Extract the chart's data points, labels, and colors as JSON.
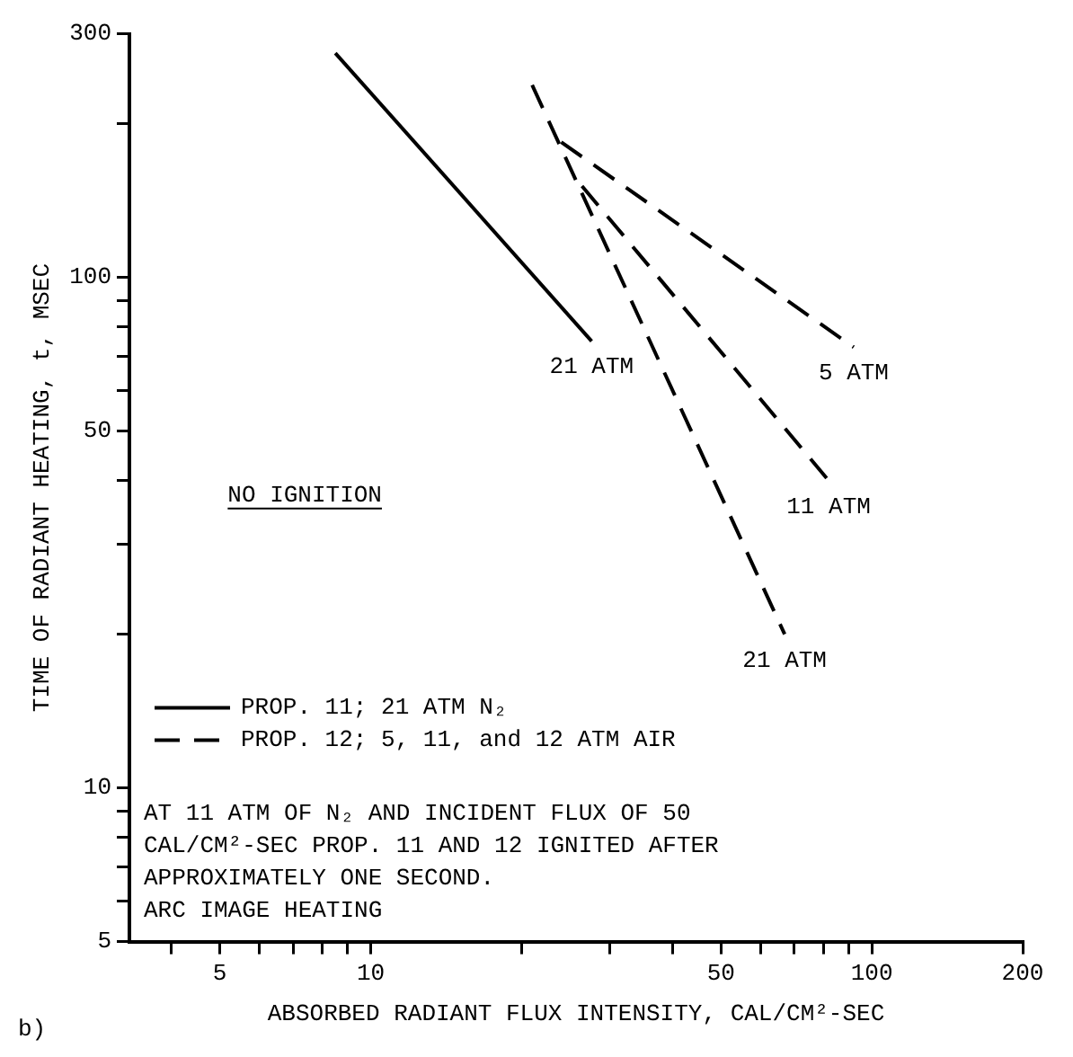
{
  "chart_data": {
    "type": "line",
    "xlabel": "ABSORBED RADIANT FLUX INTENSITY, CAL/CM²-SEC",
    "ylabel": "TIME OF RADIANT HEATING, t, MSEC",
    "log": "xy",
    "marker": "none",
    "grid": false,
    "legend": "bottom left",
    "xlim": [
      3.3,
      200
    ],
    "ylim": [
      5,
      300
    ],
    "xticks": [
      {
        "value": 4,
        "label": null
      },
      5,
      {
        "value": 6,
        "label": null
      },
      {
        "value": 7,
        "label": null
      },
      {
        "value": 8,
        "label": null
      },
      {
        "value": 9,
        "label": null
      },
      10,
      {
        "value": 20,
        "label": null
      },
      {
        "value": 30,
        "label": null
      },
      {
        "value": 40,
        "label": null
      },
      50,
      {
        "value": 60,
        "label": null
      },
      {
        "value": 70,
        "label": null
      },
      {
        "value": 80,
        "label": null
      },
      {
        "value": 90,
        "label": null
      },
      100,
      200
    ],
    "yticks": [
      5,
      {
        "value": 6,
        "label": null
      },
      {
        "value": 7,
        "label": null
      },
      {
        "value": 8,
        "label": null
      },
      {
        "value": 9,
        "label": null
      },
      10,
      {
        "value": 20,
        "label": null
      },
      {
        "value": 30,
        "label": null
      },
      {
        "value": 40,
        "label": null
      },
      50,
      {
        "value": 60,
        "label": null
      },
      {
        "value": 70,
        "label": null
      },
      {
        "value": 80,
        "label": null
      },
      {
        "value": 90,
        "label": null
      },
      100,
      {
        "value": 200,
        "label": null
      },
      300
    ],
    "series": [
      {
        "name": "PROP. 11; 21 ATM N₂",
        "color": "#000000",
        "line_style": "solid",
        "x": [
          8.5,
          27.6
        ],
        "values": [
          275,
          75
        ]
      },
      {
        "name": "PROP. 12; 5, 11, and 12 ATM AIR",
        "color": "#000000",
        "line_style": "dashed",
        "x": [
          21,
          67
        ],
        "values": [
          238,
          20
        ]
      },
      {
        "color": "#000000",
        "line_style": "dashed",
        "x": [
          24,
          92
        ],
        "values": [
          184,
          73
        ]
      },
      {
        "color": "#000000",
        "line_style": "dashed",
        "x": [
          26.4,
          82
        ],
        "values": [
          151,
          40
        ]
      }
    ],
    "annotations": [
      {
        "text": "21 ATM",
        "x": 27.6,
        "y": 75
      },
      {
        "text": "5 ATM",
        "x": 92,
        "y": 73
      },
      {
        "text": "11 ATM",
        "x": 82,
        "y": 40
      },
      {
        "text": "21 ATM",
        "x": 67,
        "y": 20
      },
      "NO IGNITION",
      "AT 11 ATM OF N₂ AND INCIDENT FLUX OF 50",
      "CAL/CM²-SEC PROP. 11 AND 12 IGNITED AFTER",
      "APPROXIMATELY ONE SECOND.",
      "ARC IMAGE HEATING",
      "b)"
    ]
  }
}
